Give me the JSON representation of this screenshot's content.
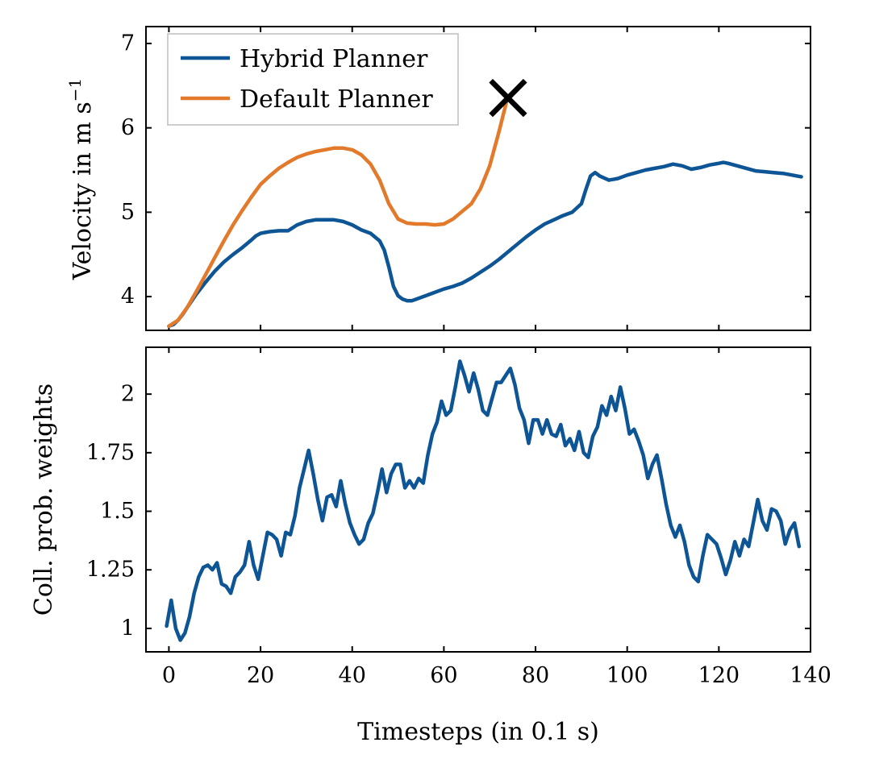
{
  "chart_data": [
    {
      "type": "line",
      "ylabel_main": "Velocity in m s",
      "ylabel_exponent": "−1",
      "xlim": [
        -5,
        140
      ],
      "ylim": [
        3.6,
        7.2
      ],
      "yticks": [
        4,
        5,
        6,
        7
      ],
      "legend_position": "top-left",
      "series": [
        {
          "name": "Hybrid Planner",
          "color": "#0d5595",
          "x": [
            0,
            1,
            2,
            3,
            4,
            5,
            6,
            8,
            10,
            12,
            14,
            16,
            18,
            19,
            20,
            21,
            22,
            24,
            26,
            28,
            30,
            32,
            34,
            36,
            38,
            40,
            42,
            44,
            46,
            47,
            48,
            49,
            50,
            51,
            52,
            53,
            54,
            56,
            58,
            60,
            62,
            64,
            66,
            68,
            70,
            72,
            74,
            76,
            78,
            80,
            82,
            84,
            86,
            88,
            90,
            91,
            92,
            93,
            94,
            96,
            98,
            100,
            102,
            104,
            106,
            108,
            110,
            112,
            114,
            116,
            118,
            120,
            121,
            122,
            124,
            126,
            128,
            130,
            132,
            134,
            136,
            138
          ],
          "y": [
            3.65,
            3.67,
            3.72,
            3.79,
            3.87,
            3.95,
            4.03,
            4.17,
            4.3,
            4.41,
            4.5,
            4.58,
            4.67,
            4.72,
            4.75,
            4.76,
            4.77,
            4.78,
            4.78,
            4.85,
            4.89,
            4.91,
            4.91,
            4.91,
            4.89,
            4.85,
            4.79,
            4.75,
            4.66,
            4.55,
            4.35,
            4.12,
            4.01,
            3.97,
            3.95,
            3.95,
            3.97,
            4.01,
            4.05,
            4.09,
            4.12,
            4.16,
            4.22,
            4.29,
            4.36,
            4.44,
            4.53,
            4.62,
            4.71,
            4.79,
            4.86,
            4.91,
            4.96,
            5.0,
            5.1,
            5.27,
            5.43,
            5.47,
            5.43,
            5.38,
            5.4,
            5.44,
            5.47,
            5.5,
            5.52,
            5.54,
            5.57,
            5.55,
            5.51,
            5.53,
            5.56,
            5.58,
            5.59,
            5.58,
            5.55,
            5.52,
            5.49,
            5.48,
            5.47,
            5.46,
            5.44,
            5.42
          ]
        },
        {
          "name": "Default Planner",
          "color": "#e3792a",
          "x": [
            0,
            2,
            4,
            6,
            8,
            10,
            12,
            14,
            16,
            18,
            20,
            22,
            24,
            26,
            28,
            30,
            32,
            34,
            36,
            38,
            40,
            42,
            44,
            46,
            48,
            50,
            52,
            54,
            56,
            58,
            60,
            62,
            64,
            66,
            68,
            70,
            72,
            74
          ],
          "y": [
            3.65,
            3.72,
            3.87,
            4.06,
            4.26,
            4.46,
            4.66,
            4.85,
            5.02,
            5.18,
            5.33,
            5.43,
            5.52,
            5.59,
            5.65,
            5.69,
            5.72,
            5.74,
            5.76,
            5.76,
            5.74,
            5.68,
            5.57,
            5.38,
            5.1,
            4.92,
            4.87,
            4.86,
            4.86,
            4.85,
            4.86,
            4.92,
            5.01,
            5.1,
            5.28,
            5.55,
            5.95,
            6.38
          ]
        }
      ],
      "marker": {
        "symbol": "×",
        "x": 74,
        "y": 6.38,
        "color": "#8b1414"
      }
    },
    {
      "type": "line",
      "xlabel": "Timesteps (in 0.1 s)",
      "ylabel": "Coll. prob. weights",
      "xlim": [
        -5,
        140
      ],
      "ylim": [
        0.9,
        2.2
      ],
      "xticks": [
        0,
        20,
        40,
        60,
        80,
        100,
        120,
        140
      ],
      "yticks": [
        1,
        1.25,
        1.5,
        1.75,
        2
      ],
      "ytick_labels": [
        "1",
        "1.25",
        "1.5",
        "1.75",
        "2"
      ],
      "series": [
        {
          "name": "Collision probability weights",
          "color": "#0d5595",
          "x": [
            -0.5,
            0.5,
            1.5,
            2.5,
            3.5,
            4.5,
            5.5,
            6.5,
            7.5,
            8.5,
            9.5,
            10.5,
            11.5,
            12.5,
            13.5,
            14.5,
            15.5,
            16.5,
            17.5,
            18.5,
            19.5,
            20.5,
            21.5,
            22.5,
            23.5,
            24.5,
            25.5,
            26.5,
            27.5,
            28.5,
            29.5,
            30.5,
            31.5,
            32.5,
            33.5,
            34.5,
            35.5,
            36.5,
            37.5,
            38.5,
            39.5,
            40.5,
            41.5,
            42.5,
            43.5,
            44.5,
            45.5,
            46.5,
            47.5,
            48.5,
            49.5,
            50.5,
            51.5,
            52.5,
            53.5,
            54.5,
            55.5,
            56.5,
            57.5,
            58.5,
            59.5,
            60.5,
            61.5,
            62.5,
            63.5,
            64.5,
            65.5,
            66.5,
            67.5,
            68.5,
            69.5,
            70.5,
            71.5,
            72.5,
            73.5,
            74.5,
            75.5,
            76.5,
            77.5,
            78.5,
            79.5,
            80.5,
            81.5,
            82.5,
            83.5,
            84.5,
            85.5,
            86.5,
            87.5,
            88.5,
            89.5,
            90.5,
            91.5,
            92.5,
            93.5,
            94.5,
            95.5,
            96.5,
            97.5,
            98.5,
            99.5,
            100.5,
            101.5,
            102.5,
            103.5,
            104.5,
            105.5,
            106.5,
            107.5,
            108.5,
            109.5,
            110.5,
            111.5,
            112.5,
            113.5,
            114.5,
            115.5,
            116.5,
            117.5,
            118.5,
            119.5,
            120.5,
            121.5,
            122.5,
            123.5,
            124.5,
            125.5,
            126.5,
            127.5,
            128.5,
            129.5,
            130.5,
            131.5,
            132.5,
            133.5,
            134.5,
            135.5,
            136.5,
            137.5
          ],
          "y": [
            1.01,
            1.12,
            1.0,
            0.95,
            0.98,
            1.05,
            1.15,
            1.22,
            1.26,
            1.27,
            1.25,
            1.28,
            1.19,
            1.18,
            1.15,
            1.22,
            1.24,
            1.27,
            1.37,
            1.27,
            1.21,
            1.31,
            1.41,
            1.4,
            1.38,
            1.31,
            1.41,
            1.4,
            1.48,
            1.6,
            1.68,
            1.76,
            1.66,
            1.55,
            1.46,
            1.56,
            1.57,
            1.52,
            1.63,
            1.53,
            1.45,
            1.4,
            1.36,
            1.38,
            1.45,
            1.49,
            1.58,
            1.68,
            1.58,
            1.66,
            1.7,
            1.7,
            1.6,
            1.63,
            1.6,
            1.64,
            1.62,
            1.74,
            1.83,
            1.88,
            1.97,
            1.91,
            1.93,
            2.03,
            2.14,
            2.08,
            2.01,
            2.09,
            2.02,
            1.93,
            1.91,
            1.98,
            2.05,
            2.05,
            2.08,
            2.11,
            2.04,
            1.94,
            1.89,
            1.79,
            1.89,
            1.89,
            1.83,
            1.89,
            1.83,
            1.82,
            1.87,
            1.78,
            1.81,
            1.76,
            1.84,
            1.75,
            1.73,
            1.82,
            1.86,
            1.95,
            1.91,
            1.99,
            1.93,
            2.03,
            1.94,
            1.83,
            1.85,
            1.8,
            1.74,
            1.64,
            1.7,
            1.74,
            1.64,
            1.53,
            1.44,
            1.39,
            1.44,
            1.37,
            1.27,
            1.22,
            1.2,
            1.31,
            1.4,
            1.38,
            1.36,
            1.3,
            1.23,
            1.29,
            1.37,
            1.31,
            1.38,
            1.35,
            1.45,
            1.55,
            1.46,
            1.42,
            1.51,
            1.5,
            1.46,
            1.36,
            1.42,
            1.45,
            1.35
          ]
        }
      ]
    }
  ]
}
